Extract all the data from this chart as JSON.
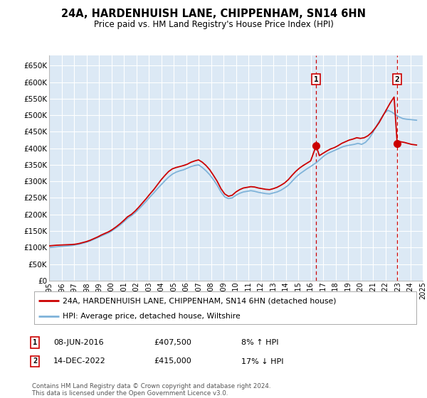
{
  "title": "24A, HARDENHUISH LANE, CHIPPENHAM, SN14 6HN",
  "subtitle": "Price paid vs. HM Land Registry's House Price Index (HPI)",
  "plot_bg_color": "#dce9f5",
  "ylim": [
    0,
    680000
  ],
  "yticks": [
    0,
    50000,
    100000,
    150000,
    200000,
    250000,
    300000,
    350000,
    400000,
    450000,
    500000,
    550000,
    600000,
    650000
  ],
  "legend_label_red": "24A, HARDENHUISH LANE, CHIPPENHAM, SN14 6HN (detached house)",
  "legend_label_blue": "HPI: Average price, detached house, Wiltshire",
  "footnote": "Contains HM Land Registry data © Crown copyright and database right 2024.\nThis data is licensed under the Open Government Licence v3.0.",
  "annotation1": {
    "label": "1",
    "date": "08-JUN-2016",
    "price": "£407,500",
    "pct": "8% ↑ HPI",
    "x_year": 2016.44,
    "y_val": 407500
  },
  "annotation2": {
    "label": "2",
    "date": "14-DEC-2022",
    "price": "£415,000",
    "pct": "17% ↓ HPI",
    "x_year": 2022.95,
    "y_val": 415000
  },
  "red_line_x": [
    1995.0,
    1995.3,
    1995.6,
    1995.9,
    1996.2,
    1996.5,
    1996.8,
    1997.1,
    1997.4,
    1997.7,
    1998.0,
    1998.3,
    1998.6,
    1998.9,
    1999.2,
    1999.5,
    1999.8,
    2000.1,
    2000.4,
    2000.7,
    2001.0,
    2001.3,
    2001.6,
    2001.9,
    2002.2,
    2002.5,
    2002.8,
    2003.1,
    2003.4,
    2003.7,
    2004.0,
    2004.3,
    2004.6,
    2004.9,
    2005.2,
    2005.5,
    2005.8,
    2006.1,
    2006.4,
    2006.7,
    2007.0,
    2007.3,
    2007.6,
    2007.9,
    2008.2,
    2008.5,
    2008.8,
    2009.1,
    2009.4,
    2009.7,
    2010.0,
    2010.3,
    2010.6,
    2010.9,
    2011.2,
    2011.5,
    2011.8,
    2012.1,
    2012.4,
    2012.7,
    2013.0,
    2013.3,
    2013.6,
    2013.9,
    2014.2,
    2014.5,
    2014.8,
    2015.1,
    2015.4,
    2015.7,
    2016.0,
    2016.44,
    2016.7,
    2017.0,
    2017.3,
    2017.6,
    2017.9,
    2018.2,
    2018.5,
    2018.8,
    2019.1,
    2019.4,
    2019.7,
    2020.0,
    2020.3,
    2020.6,
    2020.9,
    2021.2,
    2021.5,
    2021.8,
    2022.1,
    2022.4,
    2022.7,
    2022.95,
    2023.2,
    2023.5,
    2023.8,
    2024.1,
    2024.5
  ],
  "red_line_y": [
    105000,
    106000,
    107000,
    107500,
    108000,
    108500,
    109000,
    110000,
    112000,
    115000,
    118000,
    122000,
    127000,
    132000,
    138000,
    143000,
    148000,
    155000,
    163000,
    172000,
    182000,
    193000,
    200000,
    210000,
    222000,
    235000,
    248000,
    262000,
    275000,
    290000,
    305000,
    318000,
    330000,
    338000,
    342000,
    345000,
    348000,
    352000,
    358000,
    362000,
    365000,
    358000,
    348000,
    335000,
    318000,
    300000,
    278000,
    262000,
    255000,
    258000,
    268000,
    275000,
    280000,
    282000,
    284000,
    283000,
    280000,
    278000,
    276000,
    275000,
    278000,
    282000,
    288000,
    295000,
    305000,
    318000,
    330000,
    340000,
    348000,
    355000,
    362000,
    407500,
    378000,
    385000,
    392000,
    398000,
    402000,
    408000,
    415000,
    420000,
    425000,
    428000,
    432000,
    430000,
    432000,
    438000,
    448000,
    462000,
    478000,
    498000,
    518000,
    538000,
    555000,
    415000,
    420000,
    418000,
    415000,
    412000,
    410000
  ],
  "blue_line_x": [
    1995.0,
    1995.3,
    1995.6,
    1995.9,
    1996.2,
    1996.5,
    1996.8,
    1997.1,
    1997.4,
    1997.7,
    1998.0,
    1998.3,
    1998.6,
    1998.9,
    1999.2,
    1999.5,
    1999.8,
    2000.1,
    2000.4,
    2000.7,
    2001.0,
    2001.3,
    2001.6,
    2001.9,
    2002.2,
    2002.5,
    2002.8,
    2003.1,
    2003.4,
    2003.7,
    2004.0,
    2004.3,
    2004.6,
    2004.9,
    2005.2,
    2005.5,
    2005.8,
    2006.1,
    2006.4,
    2006.7,
    2007.0,
    2007.3,
    2007.6,
    2007.9,
    2008.2,
    2008.5,
    2008.8,
    2009.1,
    2009.4,
    2009.7,
    2010.0,
    2010.3,
    2010.6,
    2010.9,
    2011.2,
    2011.5,
    2011.8,
    2012.1,
    2012.4,
    2012.7,
    2013.0,
    2013.3,
    2013.6,
    2013.9,
    2014.2,
    2014.5,
    2014.8,
    2015.1,
    2015.4,
    2015.7,
    2016.0,
    2016.5,
    2016.8,
    2017.1,
    2017.4,
    2017.7,
    2018.0,
    2018.3,
    2018.6,
    2018.9,
    2019.2,
    2019.5,
    2019.8,
    2020.1,
    2020.4,
    2020.7,
    2021.0,
    2021.3,
    2021.6,
    2021.9,
    2022.2,
    2022.5,
    2022.8,
    2023.1,
    2023.4,
    2023.7,
    2024.0,
    2024.5
  ],
  "blue_line_y": [
    100000,
    101000,
    102000,
    103000,
    104000,
    105000,
    106000,
    108000,
    110000,
    113000,
    116000,
    120000,
    125000,
    130000,
    135000,
    140000,
    145000,
    152000,
    160000,
    168000,
    178000,
    188000,
    196000,
    205000,
    216000,
    228000,
    240000,
    253000,
    265000,
    278000,
    290000,
    302000,
    313000,
    322000,
    328000,
    332000,
    335000,
    340000,
    345000,
    348000,
    350000,
    342000,
    332000,
    320000,
    305000,
    288000,
    268000,
    253000,
    248000,
    250000,
    258000,
    264000,
    268000,
    270000,
    272000,
    270000,
    267000,
    265000,
    263000,
    262000,
    265000,
    268000,
    273000,
    280000,
    288000,
    300000,
    312000,
    322000,
    330000,
    338000,
    345000,
    358000,
    368000,
    378000,
    385000,
    390000,
    395000,
    400000,
    405000,
    408000,
    410000,
    412000,
    415000,
    412000,
    418000,
    430000,
    448000,
    468000,
    488000,
    505000,
    515000,
    510000,
    502000,
    495000,
    490000,
    488000,
    487000,
    485000
  ],
  "xlim": [
    1995,
    2025
  ],
  "xticks": [
    1995,
    1996,
    1997,
    1998,
    1999,
    2000,
    2001,
    2002,
    2003,
    2004,
    2005,
    2006,
    2007,
    2008,
    2009,
    2010,
    2011,
    2012,
    2013,
    2014,
    2015,
    2016,
    2017,
    2018,
    2019,
    2020,
    2021,
    2022,
    2023,
    2024,
    2025
  ]
}
